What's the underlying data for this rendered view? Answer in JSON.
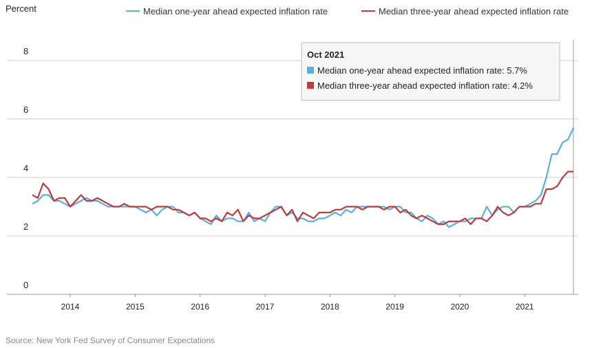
{
  "chart_data": {
    "type": "line",
    "y_label": "Percent",
    "source": "Source: New York Fed Survey of Consumer Expectations",
    "x": [
      "Jun 2013",
      "Jul 2013",
      "Aug 2013",
      "Sep 2013",
      "Oct 2013",
      "Nov 2013",
      "Dec 2013",
      "Jan 2014",
      "Feb 2014",
      "Mar 2014",
      "Apr 2014",
      "May 2014",
      "Jun 2014",
      "Jul 2014",
      "Aug 2014",
      "Sep 2014",
      "Oct 2014",
      "Nov 2014",
      "Dec 2014",
      "Jan 2015",
      "Feb 2015",
      "Mar 2015",
      "Apr 2015",
      "May 2015",
      "Jun 2015",
      "Jul 2015",
      "Aug 2015",
      "Sep 2015",
      "Oct 2015",
      "Nov 2015",
      "Dec 2015",
      "Jan 2016",
      "Feb 2016",
      "Mar 2016",
      "Apr 2016",
      "May 2016",
      "Jun 2016",
      "Jul 2016",
      "Aug 2016",
      "Sep 2016",
      "Oct 2016",
      "Nov 2016",
      "Dec 2016",
      "Jan 2017",
      "Feb 2017",
      "Mar 2017",
      "Apr 2017",
      "May 2017",
      "Jun 2017",
      "Jul 2017",
      "Aug 2017",
      "Sep 2017",
      "Oct 2017",
      "Nov 2017",
      "Dec 2017",
      "Jan 2018",
      "Feb 2018",
      "Mar 2018",
      "Apr 2018",
      "May 2018",
      "Jun 2018",
      "Jul 2018",
      "Aug 2018",
      "Sep 2018",
      "Oct 2018",
      "Nov 2018",
      "Dec 2018",
      "Jan 2019",
      "Feb 2019",
      "Mar 2019",
      "Apr 2019",
      "May 2019",
      "Jun 2019",
      "Jul 2019",
      "Aug 2019",
      "Sep 2019",
      "Oct 2019",
      "Nov 2019",
      "Dec 2019",
      "Jan 2020",
      "Feb 2020",
      "Mar 2020",
      "Apr 2020",
      "May 2020",
      "Jun 2020",
      "Jul 2020",
      "Aug 2020",
      "Sep 2020",
      "Oct 2020",
      "Nov 2020",
      "Dec 2020",
      "Jan 2021",
      "Feb 2021",
      "Mar 2021",
      "Apr 2021",
      "May 2021",
      "Jun 2021",
      "Jul 2021",
      "Aug 2021",
      "Sep 2021",
      "Oct 2021"
    ],
    "series": [
      {
        "name": "Median one-year ahead expected inflation rate",
        "color": "#5aaee0",
        "values": [
          3.1,
          3.2,
          3.4,
          3.4,
          3.2,
          3.2,
          3.1,
          3.0,
          3.1,
          3.2,
          3.3,
          3.2,
          3.2,
          3.1,
          3.0,
          3.0,
          3.0,
          3.0,
          3.0,
          3.0,
          2.9,
          2.8,
          2.9,
          2.7,
          2.9,
          3.0,
          3.0,
          2.8,
          2.8,
          2.7,
          2.8,
          2.6,
          2.5,
          2.4,
          2.7,
          2.5,
          2.6,
          2.6,
          2.5,
          2.5,
          2.8,
          2.5,
          2.6,
          2.5,
          2.8,
          3.0,
          3.0,
          2.7,
          2.8,
          2.6,
          2.6,
          2.5,
          2.5,
          2.6,
          2.6,
          2.7,
          2.8,
          2.7,
          2.9,
          2.8,
          3.0,
          3.0,
          3.0,
          3.0,
          3.0,
          3.0,
          2.9,
          3.0,
          3.0,
          2.8,
          2.8,
          2.6,
          2.5,
          2.7,
          2.6,
          2.4,
          2.5,
          2.3,
          2.4,
          2.5,
          2.5,
          2.6,
          2.6,
          2.6,
          3.0,
          2.7,
          2.9,
          3.0,
          3.0,
          2.8,
          3.0,
          3.0,
          3.1,
          3.2,
          3.4,
          4.0,
          4.8,
          4.8,
          5.2,
          5.3,
          5.7
        ]
      },
      {
        "name": "Median three-year ahead expected inflation rate",
        "color": "#c0393b",
        "values": [
          3.4,
          3.3,
          3.8,
          3.6,
          3.2,
          3.3,
          3.3,
          3.0,
          3.2,
          3.4,
          3.2,
          3.2,
          3.3,
          3.2,
          3.1,
          3.0,
          3.0,
          3.1,
          3.0,
          3.0,
          3.0,
          3.0,
          2.9,
          3.0,
          3.0,
          3.0,
          2.9,
          2.9,
          2.8,
          2.7,
          2.8,
          2.6,
          2.6,
          2.5,
          2.6,
          2.5,
          2.8,
          2.7,
          2.9,
          2.5,
          2.7,
          2.6,
          2.6,
          2.7,
          2.8,
          2.9,
          3.0,
          2.7,
          2.9,
          2.5,
          2.8,
          2.7,
          2.6,
          2.8,
          2.8,
          2.8,
          2.9,
          2.9,
          3.0,
          3.0,
          3.0,
          2.9,
          3.0,
          3.0,
          3.0,
          2.9,
          3.0,
          3.0,
          2.8,
          2.9,
          2.7,
          2.6,
          2.7,
          2.6,
          2.5,
          2.4,
          2.4,
          2.5,
          2.5,
          2.5,
          2.6,
          2.4,
          2.6,
          2.6,
          2.5,
          2.7,
          3.0,
          2.8,
          2.7,
          2.8,
          3.0,
          3.0,
          3.0,
          3.1,
          3.1,
          3.6,
          3.6,
          3.7,
          4.0,
          4.2,
          4.2
        ]
      }
    ],
    "ylim": [
      0,
      8.6
    ],
    "yticks": [
      0,
      2,
      4,
      6,
      8
    ],
    "xticks": [
      {
        "value": "Jan 2014",
        "label": "2014"
      },
      {
        "value": "Jan 2015",
        "label": "2015"
      },
      {
        "value": "Jan 2016",
        "label": "2016"
      },
      {
        "value": "Jan 2017",
        "label": "2017"
      },
      {
        "value": "Jan 2018",
        "label": "2018"
      },
      {
        "value": "Jan 2019",
        "label": "2019"
      },
      {
        "value": "Jan 2020",
        "label": "2020"
      },
      {
        "value": "Jan 2021",
        "label": "2021"
      }
    ],
    "grid": true,
    "tooltip": {
      "title": "Oct 2021",
      "items": [
        "Median one-year ahead expected inflation rate: 5.7%",
        "Median three-year ahead expected inflation rate: 4.2%"
      ]
    }
  }
}
